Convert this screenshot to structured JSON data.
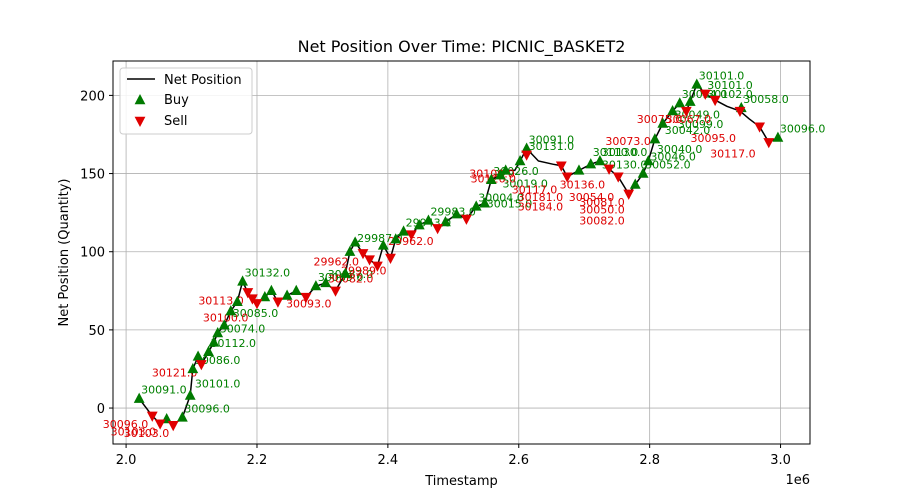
{
  "chart_data": {
    "type": "line",
    "title": "Net Position Over Time: PICNIC_BASKET2",
    "xlabel": "Timestamp",
    "ylabel": "Net Position (Quantity)",
    "x_offset_label": "1e6",
    "xlim": [
      1980000,
      3045000
    ],
    "ylim": [
      -23,
      222
    ],
    "x_ticks": [
      2000000,
      2200000,
      2400000,
      2600000,
      2800000,
      3000000
    ],
    "x_tick_labels": [
      "2.0",
      "2.2",
      "2.4",
      "2.6",
      "2.8",
      "3.0"
    ],
    "y_ticks": [
      0,
      50,
      100,
      150,
      200
    ],
    "y_tick_labels": [
      "0",
      "50",
      "100",
      "150",
      "200"
    ],
    "grid": true,
    "legend_position": "top-left",
    "colors": {
      "net": "#000000",
      "buy": "#007a00",
      "sell": "#e00000",
      "buy_text": "#008000",
      "sell_text": "#dd0000"
    },
    "series": [
      {
        "name": "Net Position",
        "points": [
          [
            2020000,
            6
          ],
          [
            2040000,
            -5
          ],
          [
            2052000,
            -10
          ],
          [
            2062000,
            -7
          ],
          [
            2072000,
            -11
          ],
          [
            2086000,
            -6
          ],
          [
            2098000,
            8
          ],
          [
            2102000,
            25
          ],
          [
            2110000,
            33
          ],
          [
            2115000,
            28
          ],
          [
            2126000,
            36
          ],
          [
            2134000,
            42
          ],
          [
            2140000,
            48
          ],
          [
            2150000,
            53
          ],
          [
            2160000,
            62
          ],
          [
            2170000,
            68
          ],
          [
            2178000,
            81
          ],
          [
            2186000,
            74
          ],
          [
            2193000,
            70
          ],
          [
            2200000,
            67
          ],
          [
            2212000,
            71
          ],
          [
            2222000,
            75
          ],
          [
            2232000,
            68
          ],
          [
            2246000,
            72
          ],
          [
            2260000,
            75
          ],
          [
            2275000,
            71
          ],
          [
            2290000,
            78
          ],
          [
            2305000,
            80
          ],
          [
            2320000,
            75
          ],
          [
            2335000,
            86
          ],
          [
            2342000,
            100
          ],
          [
            2350000,
            106
          ],
          [
            2362000,
            99
          ],
          [
            2372000,
            95
          ],
          [
            2384000,
            91
          ],
          [
            2393000,
            104
          ],
          [
            2404000,
            96
          ],
          [
            2412000,
            108
          ],
          [
            2424000,
            113
          ],
          [
            2436000,
            111
          ],
          [
            2448000,
            117
          ],
          [
            2462000,
            120
          ],
          [
            2476000,
            115
          ],
          [
            2488000,
            119
          ],
          [
            2505000,
            124
          ],
          [
            2520000,
            121
          ],
          [
            2535000,
            129
          ],
          [
            2548000,
            131
          ],
          [
            2558000,
            146
          ],
          [
            2572000,
            149
          ],
          [
            2580000,
            152
          ],
          [
            2594000,
            152
          ],
          [
            2602000,
            158
          ],
          [
            2612000,
            166
          ],
          [
            2630000,
            158
          ],
          [
            2652000,
            156
          ],
          [
            2665000,
            155
          ],
          [
            2674000,
            148
          ],
          [
            2692000,
            152
          ],
          [
            2710000,
            156
          ],
          [
            2724000,
            158
          ],
          [
            2738000,
            153
          ],
          [
            2752000,
            148
          ],
          [
            2768000,
            137
          ],
          [
            2778000,
            143
          ],
          [
            2790000,
            150
          ],
          [
            2798000,
            158
          ],
          [
            2808000,
            172
          ],
          [
            2820000,
            182
          ],
          [
            2835000,
            190
          ],
          [
            2846000,
            195
          ],
          [
            2856000,
            190
          ],
          [
            2862000,
            196
          ],
          [
            2872000,
            207
          ],
          [
            2885000,
            201
          ],
          [
            2900000,
            197
          ],
          [
            2918000,
            193
          ],
          [
            2938000,
            190
          ],
          [
            2952000,
            185
          ],
          [
            2968000,
            180
          ],
          [
            2982000,
            170
          ],
          [
            2996000,
            173
          ]
        ]
      },
      {
        "name": "Buy",
        "points": [
          [
            2020000,
            6
          ],
          [
            2062000,
            -7
          ],
          [
            2086000,
            -6
          ],
          [
            2098000,
            8
          ],
          [
            2102000,
            25
          ],
          [
            2110000,
            33
          ],
          [
            2126000,
            36
          ],
          [
            2134000,
            42
          ],
          [
            2140000,
            48
          ],
          [
            2150000,
            53
          ],
          [
            2160000,
            62
          ],
          [
            2170000,
            68
          ],
          [
            2178000,
            81
          ],
          [
            2212000,
            71
          ],
          [
            2222000,
            75
          ],
          [
            2246000,
            72
          ],
          [
            2260000,
            75
          ],
          [
            2290000,
            78
          ],
          [
            2305000,
            80
          ],
          [
            2335000,
            86
          ],
          [
            2342000,
            100
          ],
          [
            2350000,
            106
          ],
          [
            2393000,
            104
          ],
          [
            2412000,
            108
          ],
          [
            2424000,
            113
          ],
          [
            2448000,
            117
          ],
          [
            2462000,
            120
          ],
          [
            2488000,
            119
          ],
          [
            2505000,
            124
          ],
          [
            2535000,
            129
          ],
          [
            2548000,
            131
          ],
          [
            2558000,
            146
          ],
          [
            2572000,
            149
          ],
          [
            2580000,
            152
          ],
          [
            2602000,
            158
          ],
          [
            2612000,
            166
          ],
          [
            2692000,
            152
          ],
          [
            2710000,
            156
          ],
          [
            2724000,
            158
          ],
          [
            2778000,
            143
          ],
          [
            2790000,
            150
          ],
          [
            2798000,
            158
          ],
          [
            2808000,
            172
          ],
          [
            2820000,
            182
          ],
          [
            2835000,
            190
          ],
          [
            2846000,
            195
          ],
          [
            2862000,
            196
          ],
          [
            2872000,
            207
          ],
          [
            2940000,
            192
          ],
          [
            2996000,
            173
          ]
        ]
      },
      {
        "name": "Sell",
        "points": [
          [
            2040000,
            -5
          ],
          [
            2052000,
            -10
          ],
          [
            2072000,
            -11
          ],
          [
            2115000,
            28
          ],
          [
            2186000,
            74
          ],
          [
            2193000,
            70
          ],
          [
            2200000,
            67
          ],
          [
            2232000,
            68
          ],
          [
            2275000,
            71
          ],
          [
            2320000,
            75
          ],
          [
            2362000,
            99
          ],
          [
            2372000,
            95
          ],
          [
            2384000,
            91
          ],
          [
            2404000,
            96
          ],
          [
            2436000,
            111
          ],
          [
            2476000,
            115
          ],
          [
            2520000,
            121
          ],
          [
            2612000,
            162
          ],
          [
            2665000,
            155
          ],
          [
            2674000,
            148
          ],
          [
            2738000,
            153
          ],
          [
            2752000,
            148
          ],
          [
            2768000,
            137
          ],
          [
            2856000,
            190
          ],
          [
            2885000,
            201
          ],
          [
            2900000,
            197
          ],
          [
            2938000,
            190
          ],
          [
            2968000,
            180
          ],
          [
            2982000,
            170
          ]
        ]
      }
    ],
    "annotations": [
      {
        "x": 2020000,
        "y": 6,
        "text": "30091.0",
        "kind": "buy"
      },
      {
        "x": 2040000,
        "y": -5,
        "text": "30096.0",
        "kind": "sell"
      },
      {
        "x": 2052000,
        "y": -10,
        "text": "30103.0",
        "kind": "sell"
      },
      {
        "x": 2072000,
        "y": -11,
        "text": "30103.0",
        "kind": "sell"
      },
      {
        "x": 2086000,
        "y": -6,
        "text": "30096.0",
        "kind": "buy"
      },
      {
        "x": 2102000,
        "y": 10,
        "text": "30101.0",
        "kind": "buy"
      },
      {
        "x": 2102000,
        "y": 25,
        "text": "30086.0",
        "kind": "buy"
      },
      {
        "x": 2115000,
        "y": 28,
        "text": "30121.0",
        "kind": "sell"
      },
      {
        "x": 2126000,
        "y": 36,
        "text": "30112.0",
        "kind": "buy"
      },
      {
        "x": 2140000,
        "y": 45,
        "text": "30074.0",
        "kind": "buy"
      },
      {
        "x": 2160000,
        "y": 55,
        "text": "30085.0",
        "kind": "buy"
      },
      {
        "x": 2178000,
        "y": 81,
        "text": "30132.0",
        "kind": "buy"
      },
      {
        "x": 2186000,
        "y": 74,
        "text": "30113.0",
        "kind": "sell"
      },
      {
        "x": 2193000,
        "y": 63,
        "text": "30100.0",
        "kind": "sell"
      },
      {
        "x": 2290000,
        "y": 78,
        "text": "30069.0",
        "kind": "buy"
      },
      {
        "x": 2305000,
        "y": 80,
        "text": "30087.0",
        "kind": "buy"
      },
      {
        "x": 2320000,
        "y": 72,
        "text": "30093.0",
        "kind": "sell"
      },
      {
        "x": 2350000,
        "y": 103,
        "text": "29987.0",
        "kind": "buy"
      },
      {
        "x": 2362000,
        "y": 99,
        "text": "29962.0",
        "kind": "sell"
      },
      {
        "x": 2384000,
        "y": 88,
        "text": "30082.0",
        "kind": "sell"
      },
      {
        "x": 2404000,
        "y": 93,
        "text": "29989.0",
        "kind": "sell"
      },
      {
        "x": 2424000,
        "y": 113,
        "text": "29943.0",
        "kind": "buy"
      },
      {
        "x": 2462000,
        "y": 120,
        "text": "29983.0",
        "kind": "buy"
      },
      {
        "x": 2476000,
        "y": 112,
        "text": "29962.0",
        "kind": "sell"
      },
      {
        "x": 2535000,
        "y": 129,
        "text": "30004.0",
        "kind": "buy"
      },
      {
        "x": 2548000,
        "y": 125,
        "text": "30015.0",
        "kind": "buy"
      },
      {
        "x": 2558000,
        "y": 146,
        "text": "30026.0",
        "kind": "buy"
      },
      {
        "x": 2572000,
        "y": 138,
        "text": "30019.0",
        "kind": "buy"
      },
      {
        "x": 2612000,
        "y": 166,
        "text": "30091.0",
        "kind": "buy"
      },
      {
        "x": 2612000,
        "y": 162,
        "text": "30131.0",
        "kind": "buy"
      },
      {
        "x": 2600000,
        "y": 155,
        "text": "30100.0",
        "kind": "sell"
      },
      {
        "x": 2602000,
        "y": 152,
        "text": "30126.0",
        "kind": "sell"
      },
      {
        "x": 2665000,
        "y": 145,
        "text": "30117.0",
        "kind": "sell"
      },
      {
        "x": 2674000,
        "y": 140,
        "text": "30181.0",
        "kind": "sell"
      },
      {
        "x": 2674000,
        "y": 134,
        "text": "30184.0",
        "kind": "sell"
      },
      {
        "x": 2710000,
        "y": 158,
        "text": "30110.0",
        "kind": "buy"
      },
      {
        "x": 2724000,
        "y": 158,
        "text": "30130.0",
        "kind": "buy"
      },
      {
        "x": 2724000,
        "y": 150,
        "text": "30130.0",
        "kind": "buy"
      },
      {
        "x": 2738000,
        "y": 148,
        "text": "30136.0",
        "kind": "sell"
      },
      {
        "x": 2752000,
        "y": 140,
        "text": "30054.0",
        "kind": "sell"
      },
      {
        "x": 2768000,
        "y": 137,
        "text": "30081.0",
        "kind": "sell"
      },
      {
        "x": 2768000,
        "y": 132,
        "text": "30050.0",
        "kind": "sell"
      },
      {
        "x": 2768000,
        "y": 125,
        "text": "30082.0",
        "kind": "sell"
      },
      {
        "x": 2790000,
        "y": 150,
        "text": "30052.0",
        "kind": "buy"
      },
      {
        "x": 2798000,
        "y": 155,
        "text": "30046.0",
        "kind": "buy"
      },
      {
        "x": 2808000,
        "y": 160,
        "text": "30040.0",
        "kind": "buy"
      },
      {
        "x": 2820000,
        "y": 172,
        "text": "30042.0",
        "kind": "buy"
      },
      {
        "x": 2808000,
        "y": 176,
        "text": "30073.0",
        "kind": "sell"
      },
      {
        "x": 2835000,
        "y": 182,
        "text": "30049.0",
        "kind": "buy"
      },
      {
        "x": 2840000,
        "y": 176,
        "text": "30099.0",
        "kind": "buy"
      },
      {
        "x": 2846000,
        "y": 195,
        "text": "30054.0",
        "kind": "buy"
      },
      {
        "x": 2856000,
        "y": 190,
        "text": "30075.0",
        "kind": "sell"
      },
      {
        "x": 2872000,
        "y": 207,
        "text": "30101.0",
        "kind": "buy"
      },
      {
        "x": 2885000,
        "y": 201,
        "text": "30101.0",
        "kind": "buy"
      },
      {
        "x": 2885000,
        "y": 195,
        "text": "30102.0",
        "kind": "buy"
      },
      {
        "x": 2900000,
        "y": 190,
        "text": "30067.0",
        "kind": "sell"
      },
      {
        "x": 2940000,
        "y": 192,
        "text": "30058.0",
        "kind": "buy"
      },
      {
        "x": 2938000,
        "y": 178,
        "text": "30095.0",
        "kind": "sell"
      },
      {
        "x": 2968000,
        "y": 168,
        "text": "30117.0",
        "kind": "sell"
      },
      {
        "x": 2996000,
        "y": 173,
        "text": "30096.0",
        "kind": "buy"
      }
    ]
  }
}
